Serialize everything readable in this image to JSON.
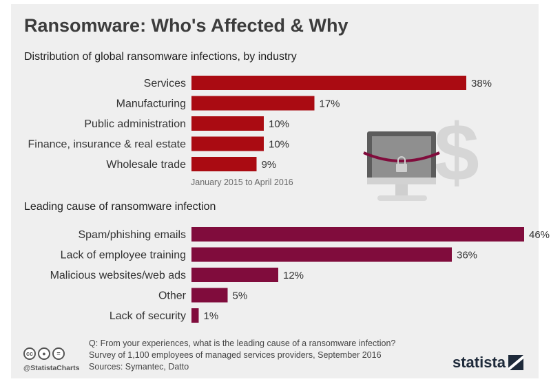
{
  "title": "Ransomware: Who's Affected & Why",
  "colors": {
    "bar1": "#aa0b12",
    "bar2": "#800c3c",
    "background": "#efefef"
  },
  "chart_data": [
    {
      "type": "bar",
      "orientation": "horizontal",
      "title": "Distribution of global ransomware infections, by industry",
      "note": "January 2015 to April 2016",
      "categories": [
        "Services",
        "Manufacturing",
        "Public administration",
        "Finance, insurance & real estate",
        "Wholesale trade"
      ],
      "values": [
        38,
        17,
        10,
        10,
        9
      ],
      "value_labels": [
        "38%",
        "17%",
        "10%",
        "10%",
        "9%"
      ],
      "unit": "%",
      "xlim": [
        0,
        46
      ],
      "grid": false,
      "legend": "none"
    },
    {
      "type": "bar",
      "orientation": "horizontal",
      "title": "Leading cause of ransomware infection",
      "categories": [
        "Spam/phishing emails",
        "Lack of employee training",
        "Malicious websites/web ads",
        "Other",
        "Lack of security"
      ],
      "values": [
        46,
        36,
        12,
        5,
        1
      ],
      "value_labels": [
        "46%",
        "36%",
        "12%",
        "5%",
        "1%"
      ],
      "unit": "%",
      "xlim": [
        0,
        46
      ],
      "grid": false,
      "legend": "none"
    }
  ],
  "footer": {
    "question": "Q: From your experiences, what is the leading cause of a ransomware infection?",
    "survey": "Survey of 1,100 employees of managed services providers, September 2016",
    "sources": "Sources: Symantec, Datto",
    "handle": "@StatistaCharts",
    "license_icons": [
      "cc",
      "by",
      "nd"
    ],
    "logo": "statista"
  },
  "illustration": {
    "icons": [
      "monitor-icon",
      "padlock-icon",
      "dollar-icon"
    ]
  }
}
